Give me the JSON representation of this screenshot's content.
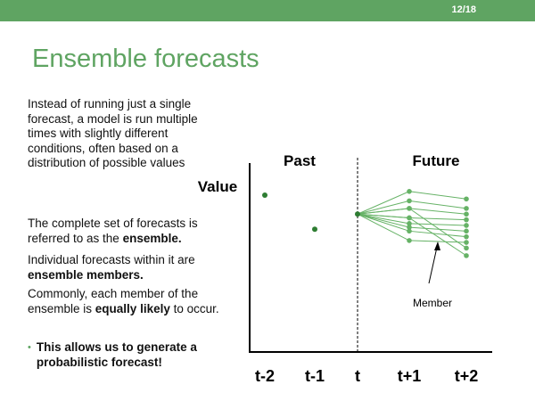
{
  "slide": {
    "page_number": "12/18",
    "title": "Ensemble forecasts"
  },
  "text": {
    "para1": "Instead of running just a single forecast, a model is run multiple times with slightly different conditions, often based on a distribution of possible values",
    "para2_prefix": "The complete set of forecasts is referred to as the ",
    "para2_bold": "ensemble.",
    "para3_prefix": "Individual forecasts within it are ",
    "para3_bold": "ensemble members.",
    "para4_prefix": "Commonly, each member of the ensemble is ",
    "para4_bold": "equally likely",
    "para4_suffix": " to occur.",
    "bullet": "This allows us to generate a probabilistic forecast!"
  },
  "diagram": {
    "y_label": "Value",
    "past_label": "Past",
    "future_label": "Future",
    "member_label": "Member",
    "x_ticks": [
      "t-2",
      "t-1",
      "t",
      "t+1",
      "t+2"
    ],
    "colors": {
      "point": "#2e7d32",
      "member": "#66b266",
      "axis": "#000000"
    },
    "past_points": [
      {
        "x": "t-2",
        "value": 0.83
      },
      {
        "x": "t-1",
        "value": 0.65
      }
    ],
    "start_point": {
      "x": "t",
      "value": 0.73
    },
    "members": [
      {
        "t1": 0.85,
        "t2": 0.81
      },
      {
        "t1": 0.8,
        "t2": 0.76
      },
      {
        "t1": 0.76,
        "t2": 0.73
      },
      {
        "t1": 0.71,
        "t2": 0.7
      },
      {
        "t1": 0.68,
        "t2": 0.67
      },
      {
        "t1": 0.66,
        "t2": 0.64
      },
      {
        "t1": 0.64,
        "t2": 0.61
      },
      {
        "t1": 0.59,
        "t2": 0.58
      },
      {
        "t1": 0.76,
        "t2": 0.55
      },
      {
        "t1": 0.71,
        "t2": 0.51
      }
    ]
  }
}
